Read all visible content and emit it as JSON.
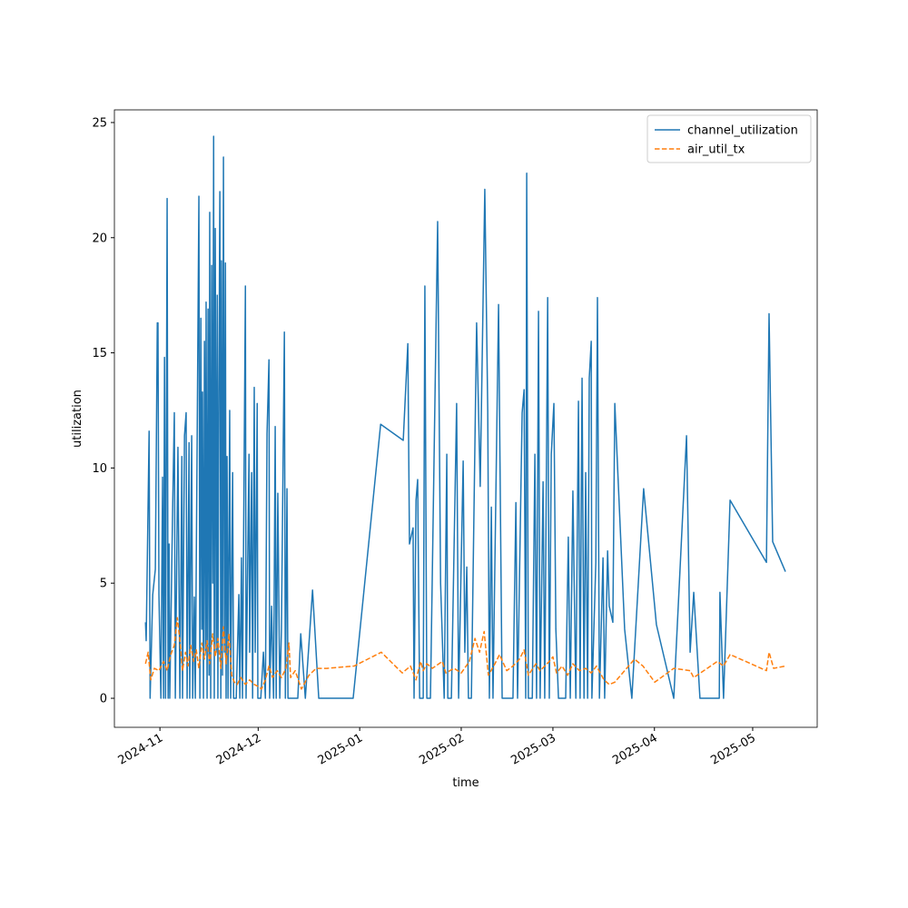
{
  "chart_data": {
    "type": "line",
    "xlabel": "time",
    "ylabel": "utilization",
    "xlim": [
      20014.1,
      20228.7
    ],
    "xticks": [
      {
        "value": 20028,
        "label": "2024-11"
      },
      {
        "value": 20058,
        "label": "2024-12"
      },
      {
        "value": 20089,
        "label": "2025-01"
      },
      {
        "value": 20120,
        "label": "2025-02"
      },
      {
        "value": 20148,
        "label": "2025-03"
      },
      {
        "value": 20179,
        "label": "2025-04"
      },
      {
        "value": 20209,
        "label": "2025-05"
      }
    ],
    "ylim": [
      -1.26,
      25.55
    ],
    "yticks": [
      0,
      5,
      10,
      15,
      20,
      25
    ],
    "legend": "upper right",
    "series": [
      {
        "name": "channel_utilization",
        "color": "#1f77b4",
        "dash": "solid",
        "x": [
          20023.6,
          20023.8,
          20024.7,
          20025.0,
          20025.8,
          20026.6,
          20027.2,
          20027.4,
          20027.7,
          20028.3,
          20028.8,
          20029.1,
          20029.4,
          20029.7,
          20030.2,
          20030.5,
          20030.8,
          20031.0,
          20031.9,
          20032.4,
          20032.7,
          20033.5,
          20034.1,
          20034.7,
          20034.9,
          20035.5,
          20036.0,
          20036.3,
          20036.9,
          20037.1,
          20037.7,
          20038.0,
          20038.5,
          20038.8,
          20039.9,
          20040.2,
          20040.5,
          20040.8,
          20041.0,
          20041.3,
          20041.6,
          20041.9,
          20042.1,
          20042.4,
          20042.7,
          20043.0,
          20043.2,
          20043.5,
          20043.8,
          20044.1,
          20044.4,
          20044.6,
          20044.9,
          20045.2,
          20045.5,
          20045.7,
          20046.0,
          20046.3,
          20046.6,
          20046.8,
          20047.1,
          20047.4,
          20047.7,
          20048.0,
          20048.2,
          20048.5,
          20048.8,
          20049.3,
          20049.6,
          20050.2,
          20050.5,
          20051.3,
          20052.1,
          20052.4,
          20052.9,
          20053.2,
          20054.1,
          20054.3,
          20055.2,
          20055.4,
          20056.0,
          20056.3,
          20056.8,
          20057.1,
          20057.7,
          20057.9,
          20058.8,
          20059.6,
          20060.2,
          20060.7,
          20061.3,
          20061.5,
          20062.1,
          20062.7,
          20063.2,
          20063.5,
          20064.0,
          20064.6,
          20065.1,
          20066.0,
          20066.3,
          20066.8,
          20067.1,
          20068.5,
          20070.1,
          20071.0,
          20072.4,
          20074.6,
          20076.5,
          20087.0,
          20095.4,
          20102.3,
          20103.7,
          20104.2,
          20105.3,
          20105.6,
          20106.2,
          20106.7,
          20107.3,
          20108.4,
          20108.9,
          20109.5,
          20110.6,
          20112.8,
          20113.7,
          20114.8,
          20115.6,
          20115.9,
          20117.0,
          20118.6,
          20119.2,
          20120.6,
          20121.1,
          20121.7,
          20122.2,
          20123.1,
          20124.7,
          20125.8,
          20127.2,
          20128.1,
          20128.6,
          20129.2,
          20129.7,
          20131.4,
          20132.5,
          20135.8,
          20136.7,
          20137.2,
          20138.6,
          20139.2,
          20139.7,
          20140.0,
          20140.5,
          20141.7,
          20142.5,
          20143.0,
          20143.6,
          20144.1,
          20145.0,
          20145.5,
          20146.4,
          20146.9,
          20147.5,
          20148.3,
          20148.9,
          20149.7,
          20151.9,
          20152.7,
          20153.3,
          20154.1,
          20155.0,
          20155.8,
          20156.3,
          20156.9,
          20157.5,
          20158.0,
          20158.6,
          20159.1,
          20159.7,
          20159.9,
          20161.1,
          20161.6,
          20162.2,
          20163.3,
          20163.8,
          20164.7,
          20165.2,
          20166.3,
          20166.9,
          20169.9,
          20172.1,
          20175.7,
          20179.6,
          20184.9,
          20188.8,
          20189.9,
          20191.0,
          20192.9,
          20195.4,
          20198.8,
          20199.0,
          20200.1,
          20202.1,
          20213.2,
          20214.0,
          20215.1,
          20219.0
        ],
        "values": [
          3.3,
          2.5,
          11.6,
          0,
          4.5,
          5.6,
          16.3,
          16.3,
          4.5,
          0,
          9.6,
          0,
          14.8,
          0,
          21.7,
          0,
          6.7,
          0,
          8.4,
          12.4,
          0,
          10.9,
          0,
          10.5,
          0,
          11.4,
          12.4,
          0,
          11.1,
          0,
          11.4,
          0,
          4.4,
          0,
          21.8,
          0,
          16.5,
          3,
          13.3,
          0,
          15.5,
          2,
          17.2,
          0,
          16.9,
          1,
          21.1,
          0,
          18.8,
          5,
          24.4,
          0,
          20.4,
          2,
          17.5,
          0,
          13.4,
          22,
          0,
          19,
          1,
          23.5,
          2,
          18.9,
          0,
          10.5,
          0,
          12.5,
          0,
          9.8,
          0,
          0,
          4.5,
          0,
          6.1,
          0,
          17.9,
          0,
          10.6,
          2,
          9.8,
          0,
          13.5,
          2,
          12.8,
          0,
          0,
          2,
          0,
          11.5,
          14.7,
          0,
          4,
          0,
          11.8,
          0,
          8.9,
          0,
          3,
          15.9,
          0,
          9.1,
          0,
          0,
          0,
          2.8,
          0,
          4.7,
          0,
          0,
          11.9,
          11.2,
          15.4,
          6.7,
          7.4,
          0,
          8.6,
          9.5,
          0,
          0,
          17.9,
          0,
          0,
          20.7,
          5,
          0,
          10.6,
          0,
          0,
          12.8,
          0,
          10.3,
          2,
          5.7,
          0,
          0,
          16.3,
          9.2,
          22.1,
          12.5,
          0,
          8.3,
          0,
          17.1,
          0,
          0,
          8.5,
          0,
          12.4,
          13.4,
          0,
          22.8,
          0,
          0,
          10.6,
          0,
          16.8,
          0,
          9.4,
          0,
          17.4,
          0,
          10.6,
          12.8,
          3,
          0,
          0,
          7,
          0,
          9,
          0,
          12.9,
          0,
          13.9,
          0,
          9.8,
          0,
          13.9,
          15.5,
          0,
          5.9,
          17.4,
          0,
          6.1,
          0,
          6.4,
          4,
          3.3,
          12.8,
          3,
          0,
          9.1,
          3.2,
          0,
          11.4,
          2,
          4.6,
          0,
          0,
          0,
          4.6,
          0,
          8.6,
          5.9,
          16.7,
          6.8,
          5.5
        ]
      },
      {
        "name": "air_util_tx",
        "color": "#ff7f0e",
        "dash": "dashed",
        "x": [
          20023.6,
          20024.4,
          20025.2,
          20026.3,
          20027.7,
          20029.1,
          20030.2,
          20031.3,
          20032.4,
          20033.3,
          20034.1,
          20034.9,
          20035.8,
          20036.6,
          20037.4,
          20038.3,
          20039.1,
          20039.9,
          20040.8,
          20041.6,
          20042.4,
          20043.2,
          20044.1,
          20044.9,
          20045.7,
          20046.6,
          20047.4,
          20048.2,
          20049.1,
          20049.9,
          20050.7,
          20051.6,
          20052.7,
          20054.1,
          20055.4,
          20056.8,
          20058.2,
          20059.0,
          20060.2,
          20061.3,
          20062.4,
          20063.8,
          20065.1,
          20066.5,
          20067.4,
          20067.9,
          20069.3,
          20071.2,
          20073.5,
          20075.7,
          20079.0,
          20087.3,
          20095.6,
          20102.0,
          20104.5,
          20106.2,
          20107.6,
          20108.4,
          20109.5,
          20111.2,
          20114.2,
          20115.3,
          20117.8,
          20120.0,
          20122.5,
          20124.2,
          20125.6,
          20127.0,
          20128.3,
          20130.3,
          20131.7,
          20133.9,
          20135.8,
          20137.8,
          20139.2,
          20140.5,
          20142.8,
          20144.1,
          20145.5,
          20146.9,
          20148.0,
          20149.1,
          20150.8,
          20152.5,
          20154.1,
          20156.1,
          20158.0,
          20159.7,
          20161.3,
          20163.6,
          20165.2,
          20166.9,
          20169.9,
          20172.9,
          20175.5,
          20179.1,
          20184.9,
          20189.9,
          20191.0,
          20198.2,
          20200.1,
          20202.1,
          20213.2,
          20214.0,
          20215.4,
          20219.0
        ],
        "values": [
          1.5,
          2,
          0.8,
          1.3,
          1.2,
          1.6,
          1.2,
          1.9,
          2.3,
          3.5,
          2.5,
          1.2,
          2.0,
          1.4,
          2.3,
          1.6,
          2.1,
          1.3,
          2.4,
          1.7,
          2.5,
          1.5,
          2.8,
          1.8,
          2.6,
          1.3,
          3.1,
          1.5,
          2.8,
          1.0,
          0.7,
          0.6,
          0.9,
          0.6,
          0.8,
          0.6,
          0.5,
          0.4,
          0.8,
          1.4,
          0.9,
          1.2,
          0.9,
          1.3,
          2.4,
          0.9,
          1.2,
          0.4,
          1.0,
          1.3,
          1.3,
          1.4,
          2.0,
          1.1,
          1.4,
          0.8,
          1.6,
          1.2,
          1.5,
          1.3,
          1.6,
          1.1,
          1.3,
          1.1,
          1.6,
          2.6,
          2.0,
          2.9,
          1.0,
          1.5,
          1.9,
          1.2,
          1.4,
          1.7,
          2.1,
          1.0,
          1.5,
          1.2,
          1.4,
          1.6,
          1.8,
          1.1,
          1.4,
          1.0,
          1.5,
          1.2,
          1.3,
          1.1,
          1.4,
          0.8,
          0.6,
          0.7,
          1.2,
          1.7,
          1.4,
          0.7,
          1.3,
          1.2,
          0.9,
          1.6,
          1.4,
          1.9,
          1.2,
          2.0,
          1.3,
          1.4
        ]
      }
    ]
  }
}
